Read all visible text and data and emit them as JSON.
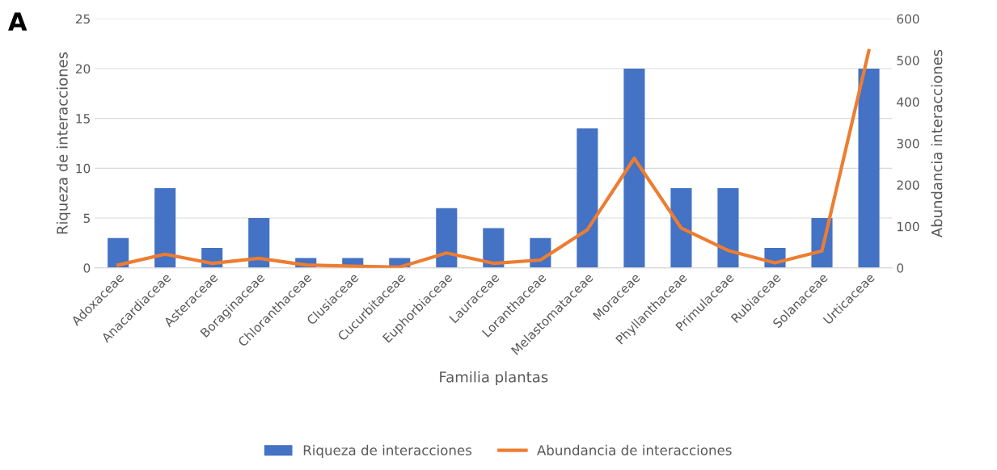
{
  "chart_data": {
    "type": "bar",
    "title": "A",
    "xlabel": "Familia plantas",
    "ylabel": "Riqueza de interacciones",
    "y2label": "Abundancia interacciones",
    "categories": [
      "Adoxaceae",
      "Anacardiaceae",
      "Asteraceae",
      "Boraginaceae",
      "Chloranthaceae",
      "Clusiaceae",
      "Cucurbitaceae",
      "Euphorbiaceae",
      "Lauraceae",
      "Loranthaceae",
      "Melastomataceae",
      "Moraceae",
      "Phyllanthaceae",
      "Primulaceae",
      "Rubiaceae",
      "Solanaceae",
      "Urticaceae"
    ],
    "series": [
      {
        "name": "Riqueza de interacciones",
        "color": "#4472c4",
        "values": [
          3,
          8,
          2,
          5,
          1,
          1,
          1,
          6,
          4,
          3,
          14,
          20,
          8,
          8,
          2,
          5,
          20
        ]
      },
      {
        "name": "Abundancia de interacciones",
        "type": "line",
        "axis": "y2",
        "color": "#ed7d31",
        "values": [
          7,
          33,
          11,
          23,
          7,
          4,
          2,
          36,
          11,
          19,
          92,
          264,
          96,
          42,
          12,
          41,
          523
        ]
      }
    ],
    "ylim": [
      0,
      25
    ],
    "yticks": [
      0,
      5,
      10,
      15,
      20,
      25
    ],
    "y2lim": [
      0,
      600
    ],
    "y2ticks": [
      0,
      100,
      200,
      300,
      400,
      500,
      600
    ],
    "grid": "y",
    "legend": "bottom",
    "marker": "none",
    "line_style": "solid"
  }
}
